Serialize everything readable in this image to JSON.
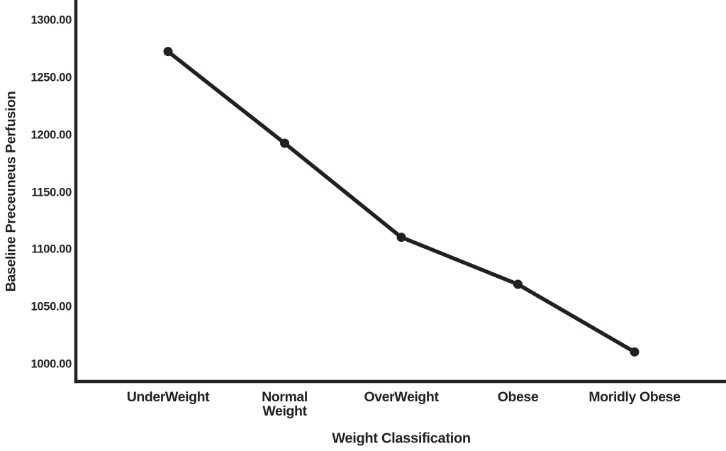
{
  "page": {
    "background": "#ffffff"
  },
  "chart_data": {
    "type": "line",
    "title": "",
    "xlabel": "Weight Classification",
    "ylabel": "Baseline Preceuneus Perfusion",
    "categories": [
      "UnderWeight",
      "Normal Weight",
      "OverWeight",
      "Obese",
      "Moridly Obese"
    ],
    "xtick_display": [
      "UnderWeight",
      "Normal\nWeight",
      "OverWeight",
      "Obese",
      "Moridly Obese"
    ],
    "values": [
      1273,
      1193,
      1111,
      1070,
      1011
    ],
    "yticks": [
      1300,
      1250,
      1200,
      1150,
      1100,
      1050,
      1000
    ],
    "ytick_labels": [
      "1300.00",
      "1250.00",
      "1200.00",
      "1150.00",
      "1100.00",
      "1050.00",
      "1000.00"
    ],
    "ylim_visible": [
      986,
      1318
    ],
    "grid": false,
    "legend": "none",
    "marker": "circle",
    "line_color": "#231f20",
    "axis_color": "#231f20",
    "text_color": "#231f20"
  }
}
